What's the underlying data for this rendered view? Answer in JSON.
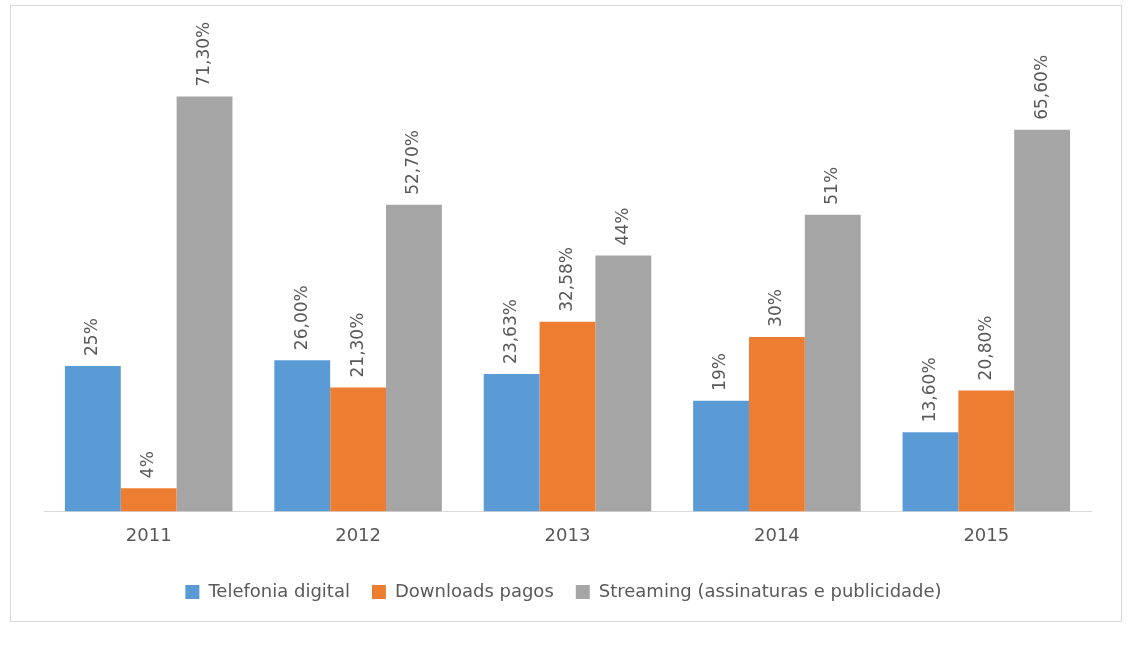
{
  "chart_data": {
    "type": "bar",
    "categories": [
      "2011",
      "2012",
      "2013",
      "2014",
      "2015"
    ],
    "series": [
      {
        "name": "Telefonia digital",
        "color": "#5b9bd5",
        "values": [
          25,
          26,
          23.63,
          19,
          13.6
        ],
        "value_labels": [
          "25%",
          "26,00%",
          "23,63%",
          "19%",
          "13,60%"
        ]
      },
      {
        "name": "Downloads pagos",
        "color": "#ed7d31",
        "values": [
          4,
          21.3,
          32.58,
          30,
          20.8
        ],
        "value_labels": [
          "4%",
          "21,30%",
          "32,58%",
          "30%",
          "20,80%"
        ]
      },
      {
        "name": "Streaming (assinaturas e publicidade)",
        "color": "#a5a5a5",
        "values": [
          71.3,
          52.7,
          44,
          51,
          65.6
        ],
        "value_labels": [
          "71,30%",
          "52,70%",
          "44%",
          "51%",
          "65,60%"
        ]
      }
    ],
    "tick_labels": "x",
    "grid": false,
    "legend": "bottom"
  }
}
